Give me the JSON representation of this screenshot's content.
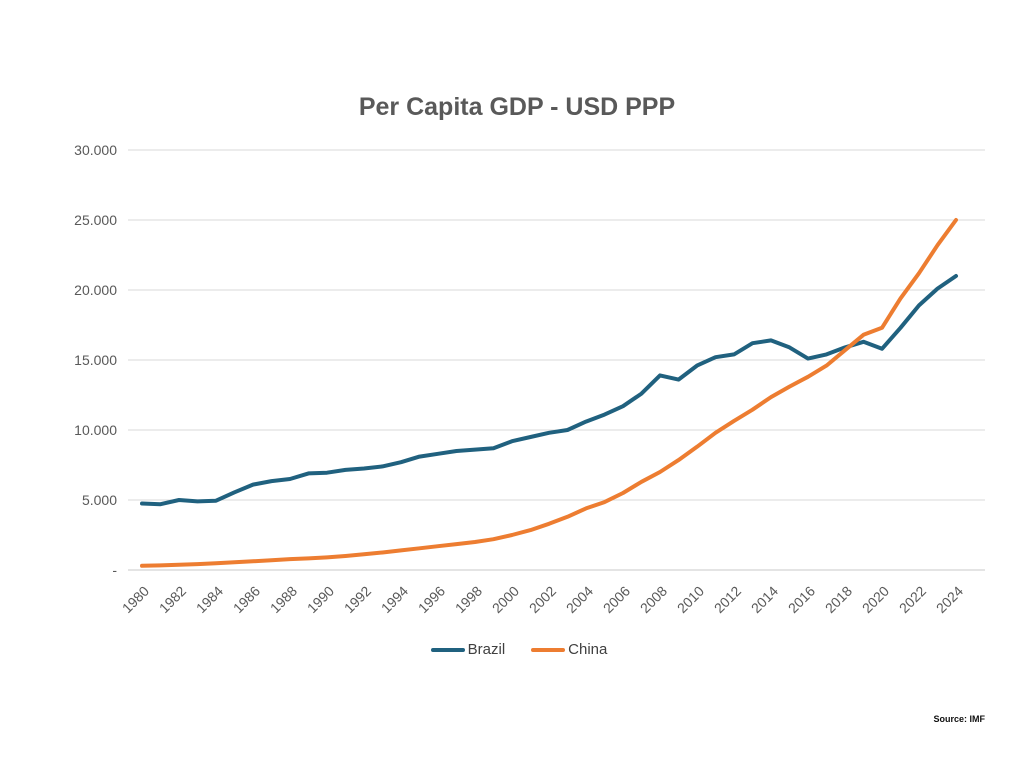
{
  "source_note": "Source: IMF",
  "chart_data": {
    "type": "line",
    "title": "Per Capita GDP - USD PPP",
    "xlabel": "",
    "ylabel": "",
    "x": [
      1980,
      1981,
      1982,
      1983,
      1984,
      1985,
      1986,
      1987,
      1988,
      1989,
      1990,
      1991,
      1992,
      1993,
      1994,
      1995,
      1996,
      1997,
      1998,
      1999,
      2000,
      2001,
      2002,
      2003,
      2004,
      2005,
      2006,
      2007,
      2008,
      2009,
      2010,
      2011,
      2012,
      2013,
      2014,
      2015,
      2016,
      2017,
      2018,
      2019,
      2020,
      2021,
      2022,
      2023,
      2024
    ],
    "series": [
      {
        "name": "Brazil",
        "color": "#20617F",
        "values": [
          4750,
          4700,
          5000,
          4900,
          4950,
          5550,
          6100,
          6350,
          6500,
          6900,
          6950,
          7150,
          7250,
          7400,
          7700,
          8100,
          8300,
          8500,
          8600,
          8700,
          9200,
          9500,
          9800,
          10000,
          10600,
          11100,
          11700,
          12600,
          13900,
          13600,
          14600,
          15200,
          15400,
          16200,
          16400,
          15900,
          15100,
          15400,
          15900,
          16300,
          15800,
          17300,
          18900,
          20100,
          21000
        ]
      },
      {
        "name": "China",
        "color": "#ED7D31",
        "values": [
          300,
          330,
          370,
          420,
          480,
          550,
          620,
          700,
          780,
          830,
          900,
          1000,
          1120,
          1250,
          1400,
          1550,
          1700,
          1850,
          2000,
          2200,
          2500,
          2850,
          3300,
          3800,
          4400,
          4850,
          5500,
          6300,
          7000,
          7850,
          8800,
          9800,
          10650,
          11450,
          12350,
          13100,
          13800,
          14600,
          15700,
          16800,
          17300,
          19400,
          21200,
          23200,
          25000
        ]
      }
    ],
    "ylim": [
      0,
      30000
    ],
    "y_ticks": {
      "values": [
        0,
        5000,
        10000,
        15000,
        20000,
        25000,
        30000
      ],
      "labels": [
        "-",
        "5.000",
        "10.000",
        "15.000",
        "20.000",
        "25.000",
        "30.000"
      ]
    },
    "x_ticks": {
      "years": [
        1980,
        1982,
        1984,
        1986,
        1988,
        1990,
        1992,
        1994,
        1996,
        1998,
        2000,
        2002,
        2004,
        2006,
        2008,
        2010,
        2012,
        2014,
        2016,
        2018,
        2020,
        2022,
        2024
      ],
      "labels": [
        "1980",
        "1982",
        "1984",
        "1986",
        "1988",
        "1990",
        "1992",
        "1994",
        "1996",
        "1998",
        "2000",
        "2002",
        "2004",
        "2006",
        "2008",
        "2010",
        "2012",
        "2014",
        "2016",
        "2018",
        "2020",
        "2022",
        "2024"
      ]
    },
    "grid": "horizontal",
    "grid_color": "#D9D9D9",
    "legend_position": "bottom"
  }
}
